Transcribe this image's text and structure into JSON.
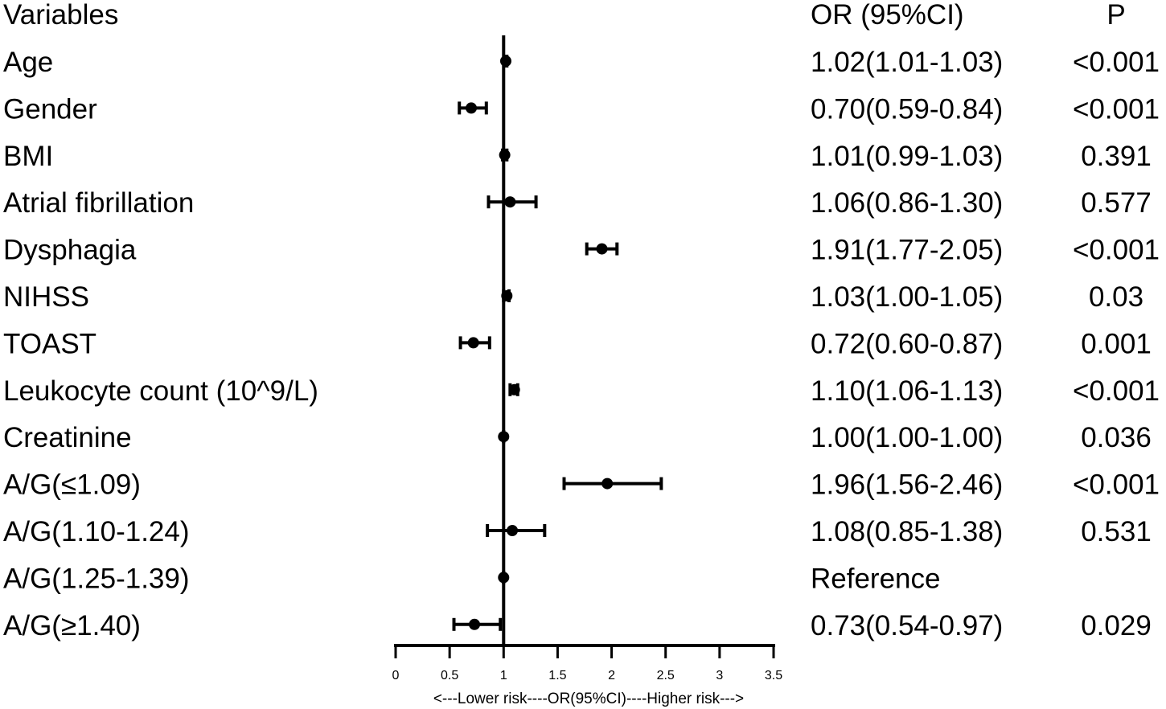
{
  "chart_data": {
    "type": "forest",
    "headers": {
      "variable": "Variables",
      "or": "OR (95%CI)",
      "p": "P"
    },
    "rows": [
      {
        "label": "Age",
        "or": 1.02,
        "lo": 1.01,
        "hi": 1.03,
        "or_text": "1.02(1.01-1.03)",
        "p": "<0.001"
      },
      {
        "label": "Gender",
        "or": 0.7,
        "lo": 0.59,
        "hi": 0.84,
        "or_text": "0.70(0.59-0.84)",
        "p": "<0.001"
      },
      {
        "label": "BMI",
        "or": 1.01,
        "lo": 0.99,
        "hi": 1.03,
        "or_text": "1.01(0.99-1.03)",
        "p": "0.391"
      },
      {
        "label": "Atrial fibrillation",
        "or": 1.06,
        "lo": 0.86,
        "hi": 1.3,
        "or_text": "1.06(0.86-1.30)",
        "p": "0.577"
      },
      {
        "label": "Dysphagia",
        "or": 1.91,
        "lo": 1.77,
        "hi": 2.05,
        "or_text": "1.91(1.77-2.05)",
        "p": "<0.001"
      },
      {
        "label": "NIHSS",
        "or": 1.03,
        "lo": 1.0,
        "hi": 1.05,
        "or_text": "1.03(1.00-1.05)",
        "p": "0.03"
      },
      {
        "label": "TOAST",
        "or": 0.72,
        "lo": 0.6,
        "hi": 0.87,
        "or_text": "0.72(0.60-0.87)",
        "p": "0.001"
      },
      {
        "label": "Leukocyte count (10^9/L)",
        "or": 1.1,
        "lo": 1.06,
        "hi": 1.13,
        "or_text": "1.10(1.06-1.13)",
        "p": "<0.001"
      },
      {
        "label": "Creatinine",
        "or": 1.0,
        "lo": 1.0,
        "hi": 1.0,
        "or_text": "1.00(1.00-1.00)",
        "p": "0.036"
      },
      {
        "label": "A/G(≤1.09)",
        "or": 1.96,
        "lo": 1.56,
        "hi": 2.46,
        "or_text": "1.96(1.56-2.46)",
        "p": "<0.001"
      },
      {
        "label": "A/G(1.10-1.24)",
        "or": 1.08,
        "lo": 0.85,
        "hi": 1.38,
        "or_text": "1.08(0.85-1.38)",
        "p": "0.531"
      },
      {
        "label": "A/G(1.25-1.39)",
        "or": 1.0,
        "lo": 1.0,
        "hi": 1.0,
        "or_text": "Reference",
        "p": ""
      },
      {
        "label": "A/G(≥1.40)",
        "or": 0.73,
        "lo": 0.54,
        "hi": 0.97,
        "or_text": "0.73(0.54-0.97)",
        "p": "0.029"
      }
    ],
    "x_axis": {
      "range": [
        0,
        3.5
      ],
      "ticks": [
        "0",
        "0.5",
        "1",
        "1.5",
        "2",
        "2.5",
        "3",
        "3.5"
      ],
      "label": "<---Lower risk----OR(95%CI)----Higher risk--->"
    },
    "reference_line": 1,
    "color": "#000000"
  }
}
